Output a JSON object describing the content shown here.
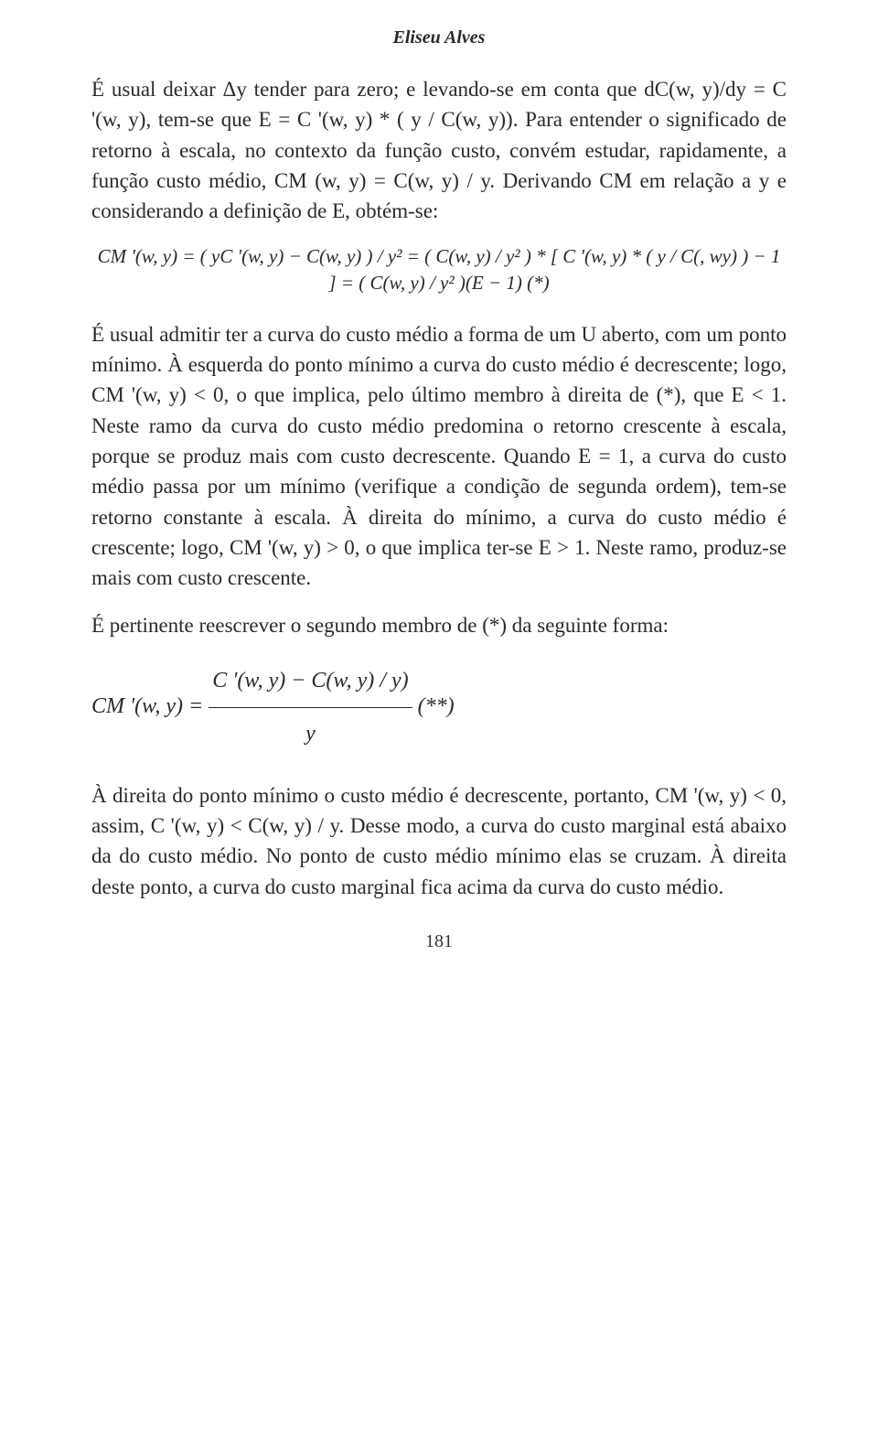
{
  "page": {
    "author": "Eliseu Alves",
    "pageNumber": "181",
    "background_color": "#ffffff",
    "text_color": "#2a2a2a",
    "font_family": "Times New Roman",
    "body_fontsize_pt": 17,
    "header_fontsize_pt": 15,
    "header_style": {
      "italic": true,
      "bold": true
    },
    "eq_center_fontsize_pt": 16,
    "eq_left_fontsize_pt": 18
  },
  "paragraphs": {
    "p1_a": "É usual deixar Δy tender para zero; e levando-se em conta que dC(w, y)/dy = C '(w, y), tem-se que E = C '(w, y) * ( y / C(w, y)). Para entender o significado de retorno à escala, no contexto da função custo, convém estudar, rapidamente, a função custo médio, CM (w, y) = C(w, y) / y. Derivando CM em relação a y e considerando a definição de E, obtém-se:",
    "eq1": "CM '(w, y) = ( yC '(w, y) − C(w, y) ) / y²  =  ( C(w, y) / y² ) * [ C '(w, y) * ( y / C(, wy) ) − 1 ]  =  ( C(w, y) / y² )(E − 1)    (*)",
    "p2": "É usual admitir ter a curva do custo médio a forma de um U aberto, com um ponto mínimo. À esquerda do ponto mínimo a curva do custo médio é decrescente; logo, CM '(w, y) < 0, o que implica, pelo último membro à direita de (*), que E < 1. Neste ramo da curva do custo médio predomina o retorno crescente à escala, porque se produz mais com custo decrescente. Quando E = 1, a curva do custo médio passa por um mínimo (verifique a condição de segunda ordem), tem-se retorno constante à escala. À direita do mínimo, a curva do custo médio é crescente; logo, CM '(w, y) > 0, o que implica ter-se E > 1. Neste ramo, produz-se mais com custo crescente.",
    "p3": "É pertinente reescrever o segundo membro de (*) da seguinte forma:",
    "eq2_lhs": "CM '(w, y) = ",
    "eq2_num": "C '(w, y) − C(w, y) / y)",
    "eq2_den": "y",
    "eq2_tag": "    (**)",
    "p4": "À direita do ponto mínimo o custo médio é decrescente, portanto, CM '(w, y) < 0, assim, C '(w, y) < C(w, y) / y. Desse modo, a curva do custo marginal está abaixo da do custo médio. No ponto de custo médio mínimo elas se cruzam. À direita deste ponto, a curva do custo marginal fica acima da curva do custo médio."
  }
}
